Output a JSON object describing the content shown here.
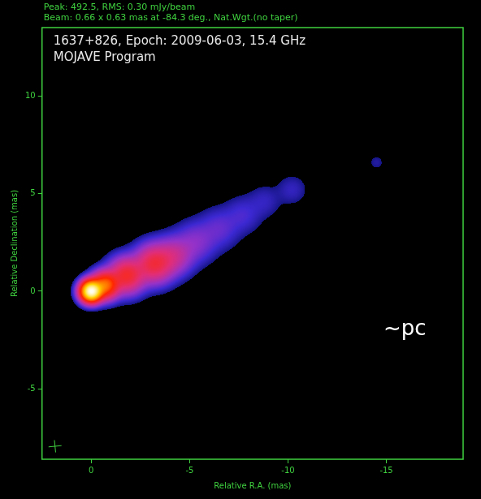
{
  "chart_data": {
    "type": "image",
    "header": [
      "Peak: 492.5, RMS: 0.30 mJy/beam",
      "Beam: 0.66 x 0.63 mas at -84.3 deg., Nat.Wgt.(no taper)"
    ],
    "title": "1637+826, Epoch: 2009-06-03, 15.4 GHz",
    "subtitle": "MOJAVE Program",
    "annotation": "~pc",
    "x_label": "Relative R.A. (mas)",
    "y_label": "Relative Declination (mas)",
    "peak": 492.5,
    "rms": 0.3,
    "beam": {
      "major": 0.66,
      "minor": 0.63,
      "angle": -84.3
    },
    "components": [
      {
        "x": 0,
        "y": 0,
        "flux": 480,
        "fwhm": 0.7
      },
      {
        "x": -0.7,
        "y": 0.3,
        "flux": 150,
        "fwhm": 0.9
      },
      {
        "x": -1.8,
        "y": 0.8,
        "flux": 70,
        "fwhm": 1.2
      },
      {
        "x": -3.2,
        "y": 1.4,
        "flux": 60,
        "fwhm": 1.3
      },
      {
        "x": -4.2,
        "y": 1.8,
        "flux": 25,
        "fwhm": 1.3
      },
      {
        "x": -5.3,
        "y": 2.5,
        "flux": 10,
        "fwhm": 1.4
      },
      {
        "x": -6.5,
        "y": 3.2,
        "flux": 6,
        "fwhm": 1.4
      },
      {
        "x": -7.7,
        "y": 3.9,
        "flux": 4,
        "fwhm": 1.3
      },
      {
        "x": -8.8,
        "y": 4.6,
        "flux": 2.5,
        "fwhm": 1.2
      },
      {
        "x": -10.2,
        "y": 5.2,
        "flux": 2.5,
        "fwhm": 1.1
      },
      {
        "x": -14.5,
        "y": 6.6,
        "flux": 1.5,
        "fwhm": 0.6
      }
    ],
    "xlim": [
      2.5,
      -18.9
    ],
    "ylim": [
      -8.6,
      13.5
    ],
    "xticks": [
      0,
      -5,
      -10,
      -15
    ],
    "yticks": [
      -5,
      0,
      5,
      10
    ],
    "grid": false
  }
}
